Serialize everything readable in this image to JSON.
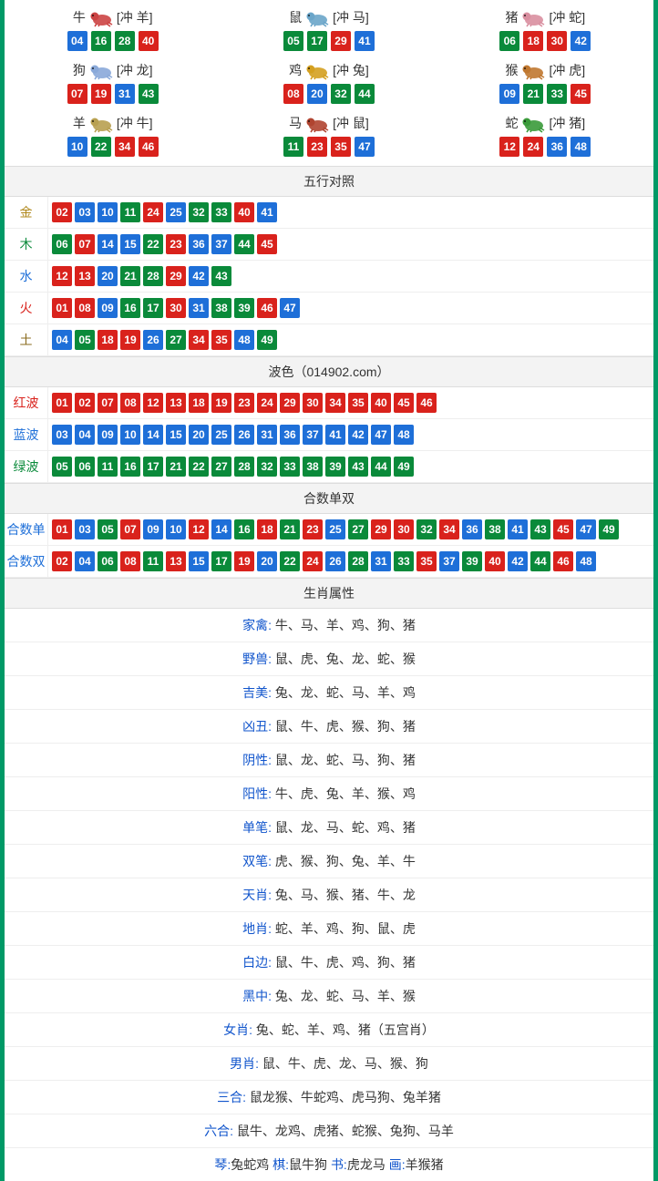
{
  "colors": {
    "red": "#d9221c",
    "blue": "#1e6fd8",
    "green": "#0a8a3a",
    "border_outer": "#009966",
    "border_cell": "#eeeeee",
    "header_bg": "#f3f3f3",
    "text": "#333333",
    "link": "#1155cc"
  },
  "ball_color_map": {
    "red": [
      "01",
      "02",
      "07",
      "08",
      "12",
      "13",
      "18",
      "19",
      "23",
      "24",
      "29",
      "30",
      "34",
      "35",
      "40",
      "45",
      "46"
    ],
    "blue": [
      "03",
      "04",
      "09",
      "10",
      "14",
      "15",
      "20",
      "25",
      "26",
      "31",
      "36",
      "37",
      "41",
      "42",
      "47",
      "48"
    ],
    "green": [
      "05",
      "06",
      "11",
      "16",
      "17",
      "21",
      "22",
      "27",
      "28",
      "32",
      "33",
      "38",
      "39",
      "43",
      "44",
      "49"
    ]
  },
  "zodiac": [
    {
      "name": "牛",
      "clash": "[冲 羊]",
      "icon_color": "#cc4444",
      "balls": [
        "04",
        "16",
        "28",
        "40"
      ]
    },
    {
      "name": "鼠",
      "clash": "[冲 马]",
      "icon_color": "#6aa5c9",
      "balls": [
        "05",
        "17",
        "29",
        "41"
      ]
    },
    {
      "name": "猪",
      "clash": "[冲 蛇]",
      "icon_color": "#d98fa0",
      "balls": [
        "06",
        "18",
        "30",
        "42"
      ]
    },
    {
      "name": "狗",
      "clash": "[冲 龙]",
      "icon_color": "#8aa9d9",
      "balls": [
        "07",
        "19",
        "31",
        "43"
      ]
    },
    {
      "name": "鸡",
      "clash": "[冲 兔]",
      "icon_color": "#d4a020",
      "balls": [
        "08",
        "20",
        "32",
        "44"
      ]
    },
    {
      "name": "猴",
      "clash": "[冲 虎]",
      "icon_color": "#c07830",
      "balls": [
        "09",
        "21",
        "33",
        "45"
      ]
    },
    {
      "name": "羊",
      "clash": "[冲 牛]",
      "icon_color": "#b8a050",
      "balls": [
        "10",
        "22",
        "34",
        "46"
      ]
    },
    {
      "name": "马",
      "clash": "[冲 鼠]",
      "icon_color": "#b04430",
      "balls": [
        "11",
        "23",
        "35",
        "47"
      ]
    },
    {
      "name": "蛇",
      "clash": "[冲 猪]",
      "icon_color": "#3a9a3a",
      "balls": [
        "12",
        "24",
        "36",
        "48"
      ]
    }
  ],
  "sections": {
    "wuxing": {
      "title": "五行对照",
      "rows": [
        {
          "label": "金",
          "label_color": "#b0881d",
          "balls": [
            "02",
            "03",
            "10",
            "11",
            "24",
            "25",
            "32",
            "33",
            "40",
            "41"
          ]
        },
        {
          "label": "木",
          "label_color": "#0a8a3a",
          "balls": [
            "06",
            "07",
            "14",
            "15",
            "22",
            "23",
            "36",
            "37",
            "44",
            "45"
          ]
        },
        {
          "label": "水",
          "label_color": "#1e6fd8",
          "balls": [
            "12",
            "13",
            "20",
            "21",
            "28",
            "29",
            "42",
            "43"
          ]
        },
        {
          "label": "火",
          "label_color": "#d9221c",
          "balls": [
            "01",
            "08",
            "09",
            "16",
            "17",
            "30",
            "31",
            "38",
            "39",
            "46",
            "47"
          ]
        },
        {
          "label": "土",
          "label_color": "#8a6b1d",
          "balls": [
            "04",
            "05",
            "18",
            "19",
            "26",
            "27",
            "34",
            "35",
            "48",
            "49"
          ]
        }
      ]
    },
    "bose": {
      "title": "波色（014902.com）",
      "rows": [
        {
          "label": "红波",
          "label_color": "#d9221c",
          "balls": [
            "01",
            "02",
            "07",
            "08",
            "12",
            "13",
            "18",
            "19",
            "23",
            "24",
            "29",
            "30",
            "34",
            "35",
            "40",
            "45",
            "46"
          ]
        },
        {
          "label": "蓝波",
          "label_color": "#1e6fd8",
          "balls": [
            "03",
            "04",
            "09",
            "10",
            "14",
            "15",
            "20",
            "25",
            "26",
            "31",
            "36",
            "37",
            "41",
            "42",
            "47",
            "48"
          ]
        },
        {
          "label": "绿波",
          "label_color": "#0a8a3a",
          "balls": [
            "05",
            "06",
            "11",
            "16",
            "17",
            "21",
            "22",
            "27",
            "28",
            "32",
            "33",
            "38",
            "39",
            "43",
            "44",
            "49"
          ]
        }
      ]
    },
    "heshu": {
      "title": "合数单双",
      "rows": [
        {
          "label": "合数单",
          "label_color": "#1e6fd8",
          "balls": [
            "01",
            "03",
            "05",
            "07",
            "09",
            "10",
            "12",
            "14",
            "16",
            "18",
            "21",
            "23",
            "25",
            "27",
            "29",
            "30",
            "32",
            "34",
            "36",
            "38",
            "41",
            "43",
            "45",
            "47",
            "49"
          ]
        },
        {
          "label": "合数双",
          "label_color": "#1e6fd8",
          "balls": [
            "02",
            "04",
            "06",
            "08",
            "11",
            "13",
            "15",
            "17",
            "19",
            "20",
            "22",
            "24",
            "26",
            "28",
            "31",
            "33",
            "35",
            "37",
            "39",
            "40",
            "42",
            "44",
            "46",
            "48"
          ]
        }
      ]
    },
    "attrs": {
      "title": "生肖属性",
      "rows": [
        {
          "label": "家禽:",
          "value": "牛、马、羊、鸡、狗、猪"
        },
        {
          "label": "野兽:",
          "value": "鼠、虎、兔、龙、蛇、猴"
        },
        {
          "label": "吉美:",
          "value": "兔、龙、蛇、马、羊、鸡"
        },
        {
          "label": "凶丑:",
          "value": "鼠、牛、虎、猴、狗、猪"
        },
        {
          "label": "阴性:",
          "value": "鼠、龙、蛇、马、狗、猪"
        },
        {
          "label": "阳性:",
          "value": "牛、虎、兔、羊、猴、鸡"
        },
        {
          "label": "单笔:",
          "value": "鼠、龙、马、蛇、鸡、猪"
        },
        {
          "label": "双笔:",
          "value": "虎、猴、狗、兔、羊、牛"
        },
        {
          "label": "天肖:",
          "value": "兔、马、猴、猪、牛、龙"
        },
        {
          "label": "地肖:",
          "value": "蛇、羊、鸡、狗、鼠、虎"
        },
        {
          "label": "白边:",
          "value": "鼠、牛、虎、鸡、狗、猪"
        },
        {
          "label": "黑中:",
          "value": "兔、龙、蛇、马、羊、猴"
        },
        {
          "label": "女肖:",
          "value": "兔、蛇、羊、鸡、猪（五宫肖）"
        },
        {
          "label": "男肖:",
          "value": "鼠、牛、虎、龙、马、猴、狗"
        },
        {
          "label": "三合:",
          "value": "鼠龙猴、牛蛇鸡、虎马狗、兔羊猪"
        },
        {
          "label": "六合:",
          "value": "鼠牛、龙鸡、虎猪、蛇猴、兔狗、马羊"
        }
      ],
      "last_line": [
        {
          "label": "琴:",
          "value": "兔蛇鸡"
        },
        {
          "label": "棋:",
          "value": "鼠牛狗"
        },
        {
          "label": "书:",
          "value": "虎龙马"
        },
        {
          "label": "画:",
          "value": "羊猴猪"
        }
      ]
    }
  }
}
